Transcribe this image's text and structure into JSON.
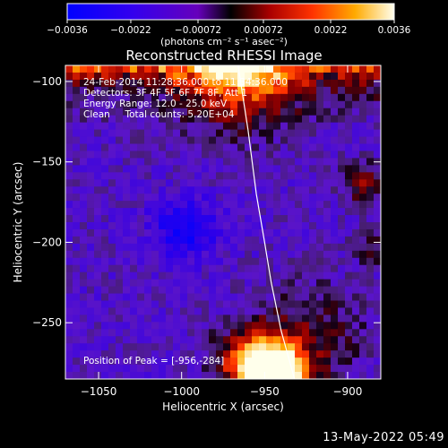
{
  "chart_data": {
    "type": "heatmap",
    "title": "Reconstructed RHESSI Image",
    "xlabel": "Heliocentric X (arcsec)",
    "ylabel": "Heliocentric Y (arcsec)",
    "xlim": [
      -1070,
      -880
    ],
    "ylim": [
      -285,
      -90
    ],
    "x_ticks": [
      -1050,
      -1000,
      -950,
      -900
    ],
    "x_tick_labels": [
      "−1050",
      "−1000",
      "−950",
      "−900"
    ],
    "y_ticks": [
      -100,
      -150,
      -200,
      -250
    ],
    "y_tick_labels": [
      "−100",
      "−150",
      "−200",
      "−250"
    ],
    "colorbar": {
      "min": -0.0036,
      "max": 0.0036,
      "tick_values": [
        -0.0036,
        -0.0022,
        -0.00072,
        0.00072,
        0.0022,
        0.0036
      ],
      "tick_labels": [
        "−0.0036",
        "−0.0022",
        "−0.00072",
        "0.00072",
        "0.0022",
        "0.0036"
      ],
      "unit_label": "(photons cm⁻² s⁻¹ asec⁻²)"
    },
    "annotations": {
      "time_range": "24-Feb-2014 11:28:36.000 to 11:34:36.000",
      "detectors": "Detectors: 3F 4F 5F 6F 7F 8F, Att 1",
      "energy": "Energy Range: 12.0 - 25.0 keV",
      "clean": "Clean     Total counts: 5.20E+04",
      "peak": "Position of Peak = [-956,-284]"
    },
    "limb_curve": [
      [
        -966,
        -90
      ],
      [
        -960,
        -130
      ],
      [
        -955,
        -170
      ],
      [
        -950,
        -200
      ],
      [
        -946,
        -225
      ],
      [
        -940,
        -255
      ],
      [
        -932,
        -285
      ]
    ],
    "peak_position": [
      -956,
      -284
    ]
  },
  "timestamp": "13-May-2022 05:49"
}
